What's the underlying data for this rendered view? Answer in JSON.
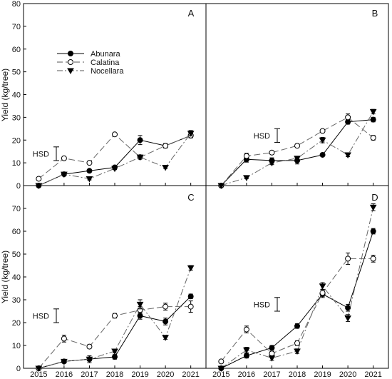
{
  "chart_data": [
    {
      "type": "line",
      "panel": "A",
      "x": [
        2015,
        2016,
        2017,
        2018,
        2019,
        2020,
        2021
      ],
      "ylabel": "Yield (kg/tree)",
      "ylim": [
        0,
        80
      ],
      "yticks": [
        0,
        10,
        20,
        30,
        40,
        50,
        60,
        70,
        80
      ],
      "hsd": {
        "label": "HSD",
        "center": 14,
        "half": 3
      },
      "series": [
        {
          "name": "Abunara",
          "marker": "filled-circle",
          "line": "solid",
          "values": [
            0,
            5,
            6.5,
            8,
            20,
            17.5,
            22
          ],
          "err": [
            0,
            0.6,
            0.5,
            0.5,
            2,
            1,
            1
          ]
        },
        {
          "name": "Calatina",
          "marker": "open-circle",
          "line": "long-dash",
          "values": [
            3,
            12,
            10,
            22.5,
            12.5,
            17.5,
            22
          ],
          "err": [
            0,
            0.6,
            0.5,
            0.5,
            0.8,
            0.8,
            1
          ]
        },
        {
          "name": "Nocellara",
          "marker": "filled-triangle-down",
          "line": "dash-dot",
          "values": [
            0,
            5,
            3,
            7.5,
            12.5,
            8,
            23
          ],
          "err": [
            0,
            0.6,
            0.5,
            0.5,
            0.8,
            0.5,
            1.2
          ]
        }
      ]
    },
    {
      "type": "line",
      "panel": "B",
      "x": [
        2015,
        2016,
        2017,
        2018,
        2019,
        2020,
        2021
      ],
      "ylim": [
        0,
        80
      ],
      "hsd": {
        "label": "HSD",
        "center": 22,
        "half": 3
      },
      "series": [
        {
          "name": "Abunara",
          "values": [
            0,
            11.5,
            11,
            11,
            13.5,
            28,
            29
          ],
          "err": [
            0,
            1.2,
            1.2,
            1.5,
            0.5,
            1,
            1
          ]
        },
        {
          "name": "Calatina",
          "values": [
            0,
            13,
            14.5,
            17.5,
            24,
            30,
            21
          ],
          "err": [
            0,
            1.2,
            0.6,
            0.8,
            0.6,
            1.5,
            1
          ]
        },
        {
          "name": "Nocellara",
          "values": [
            0,
            3.5,
            10,
            12,
            20,
            13.5,
            32.5
          ],
          "err": [
            0,
            0.5,
            0.8,
            0.8,
            1.2,
            0.8,
            1
          ]
        }
      ]
    },
    {
      "type": "line",
      "panel": "C",
      "x": [
        2015,
        2016,
        2017,
        2018,
        2019,
        2020,
        2021
      ],
      "xlabel": "",
      "ylabel": "Yield (kg/tree)",
      "ylim": [
        0,
        80
      ],
      "yticks": [
        0,
        10,
        20,
        30,
        40,
        50,
        60,
        70
      ],
      "xticks": [
        "2015",
        "2016",
        "2017",
        "2018",
        "2019",
        "2020",
        "2021"
      ],
      "hsd": {
        "label": "HSD",
        "center": 23,
        "half": 3
      },
      "series": [
        {
          "name": "Abunara",
          "values": [
            0,
            3,
            4,
            5,
            23,
            20.5,
            31.5
          ],
          "err": [
            0,
            0.5,
            1.5,
            1,
            1.5,
            1.5,
            1
          ]
        },
        {
          "name": "Calatina",
          "values": [
            0,
            13,
            9.5,
            23,
            25.5,
            27,
            27
          ],
          "err": [
            0,
            1.5,
            0.8,
            1,
            1.5,
            1.5,
            2.5
          ]
        },
        {
          "name": "Nocellara",
          "values": [
            0,
            3,
            4,
            7.5,
            28,
            13.5,
            44
          ],
          "err": [
            0,
            0.5,
            0.8,
            0.8,
            2,
            0.8,
            1
          ]
        }
      ]
    },
    {
      "type": "line",
      "panel": "D",
      "x": [
        2015,
        2016,
        2017,
        2018,
        2019,
        2020,
        2021
      ],
      "ylim": [
        0,
        80
      ],
      "xticks": [
        "2015",
        "2016",
        "2017",
        "2018",
        "2019",
        "2020",
        "2021"
      ],
      "hsd": {
        "label": "HSD",
        "center": 28,
        "half": 3
      },
      "series": [
        {
          "name": "Abunara",
          "values": [
            0,
            5.5,
            9,
            18.5,
            32.5,
            26.5,
            60
          ],
          "err": [
            0,
            1,
            1,
            1,
            1.5,
            1.5,
            1.2
          ]
        },
        {
          "name": "Calatina",
          "values": [
            3,
            17,
            6.5,
            11,
            33,
            48,
            48
          ],
          "err": [
            0,
            1.5,
            1,
            1,
            1.5,
            2.5,
            1.5
          ]
        },
        {
          "name": "Nocellara",
          "values": [
            0,
            8,
            4.5,
            7.5,
            36,
            22,
            70.5
          ],
          "err": [
            0,
            1.2,
            1,
            1,
            1.5,
            1.5,
            1.5
          ]
        }
      ]
    }
  ],
  "legend": {
    "placement": "upper-left of panel A",
    "items": [
      "Abunara",
      "Calatina",
      "Nocellara"
    ]
  },
  "labels": {
    "ylabel_top": "Yield (kg/tree)",
    "ylabel_bottom": "Yield (kg/tree)",
    "panel_a": "A",
    "panel_b": "B",
    "panel_c": "C",
    "panel_d": "D",
    "legend_1": "Abunara",
    "legend_2": "Calatina",
    "legend_3": "Nocellara"
  }
}
